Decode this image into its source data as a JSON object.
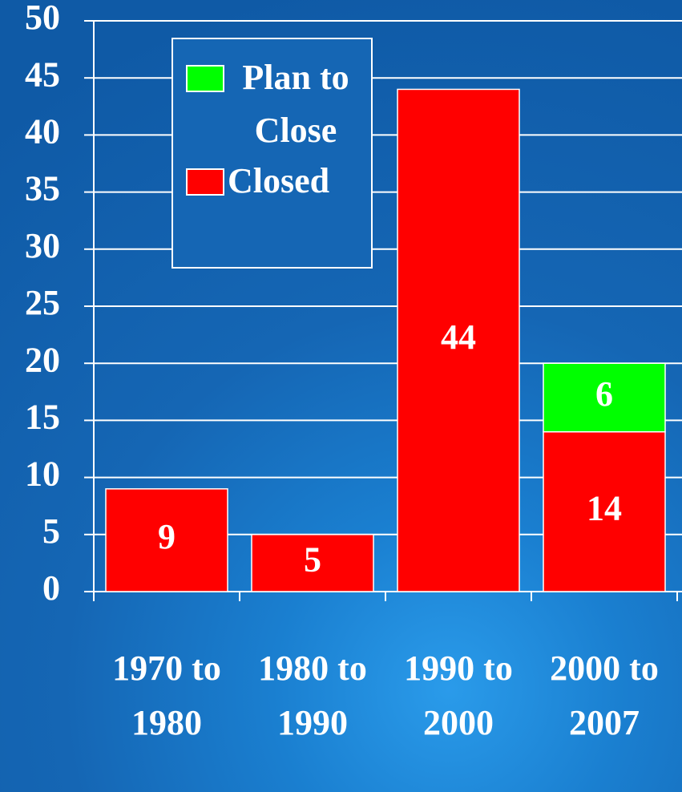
{
  "chart_data": {
    "type": "bar",
    "stacked": true,
    "categories": [
      "1970 to 1980",
      "1980 to 1990",
      "1990 to 2000",
      "2000 to 2007"
    ],
    "series": [
      {
        "name": "Closed",
        "color": "#ff0000",
        "values": [
          9,
          5,
          44,
          14
        ]
      },
      {
        "name": "Plan to Close",
        "color": "#00ff00",
        "values": [
          null,
          null,
          null,
          6
        ]
      }
    ],
    "ylim": [
      0,
      50
    ],
    "yticks": [
      0,
      5,
      10,
      15,
      20,
      25,
      30,
      35,
      40,
      45,
      50
    ],
    "grid": true,
    "legend": "upper-left"
  }
}
